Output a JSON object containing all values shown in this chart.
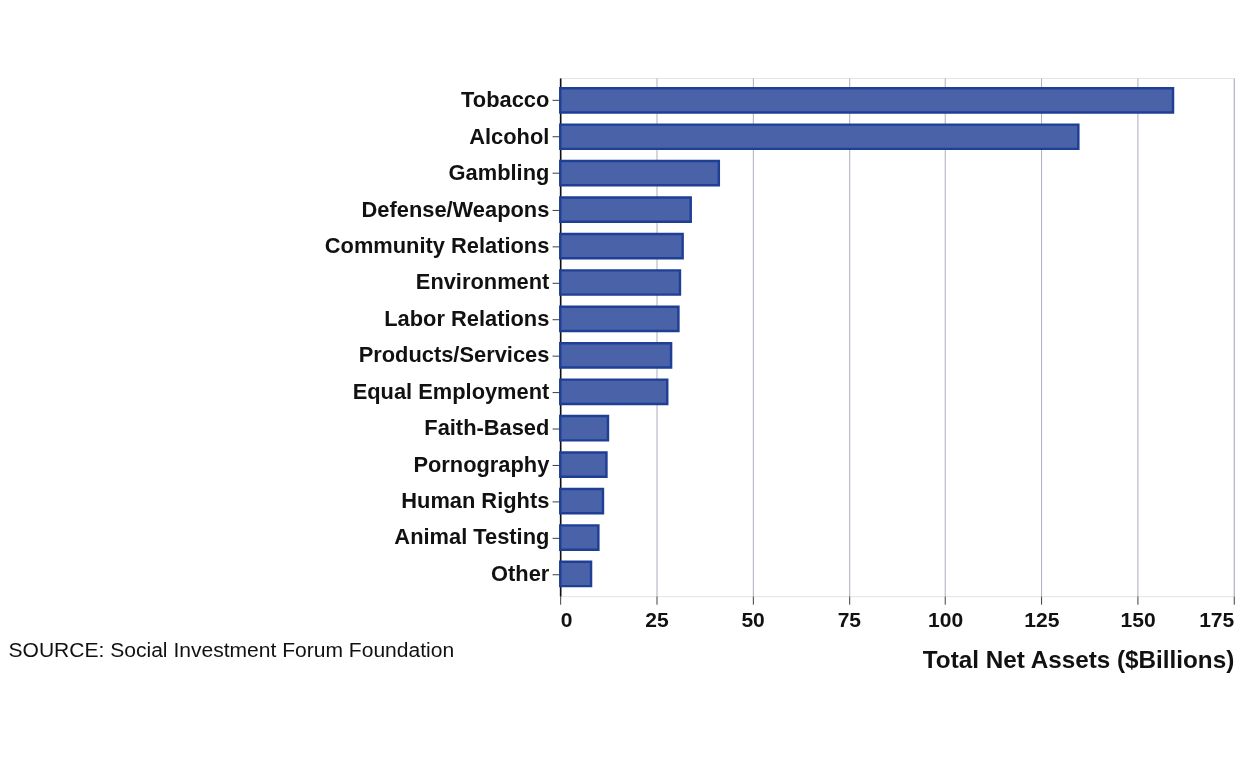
{
  "chart_data": {
    "type": "bar",
    "orientation": "horizontal",
    "categories": [
      "Tobacco",
      "Alcohol",
      "Gambling",
      "Defense/Weapons",
      "Community Relations",
      "Environment",
      "Labor Relations",
      "Products/Services",
      "Equal Employment",
      "Faith-Based",
      "Pornography",
      "Human Rights",
      "Animal Testing",
      "Other"
    ],
    "values": [
      159.2,
      134.6,
      41.2,
      33.9,
      31.8,
      31.1,
      30.7,
      28.8,
      27.8,
      12.4,
      12.0,
      11.1,
      9.9,
      8.0
    ],
    "color": "#4a62a8",
    "xlabel": "Total Net Assets ($Billions)",
    "xlim": [
      0,
      175
    ],
    "xticks": [
      0,
      25,
      50,
      75,
      100,
      125,
      150,
      175
    ],
    "grid": "x",
    "annotations": [
      "SOURCE: Social Investment Forum Foundation"
    ]
  }
}
